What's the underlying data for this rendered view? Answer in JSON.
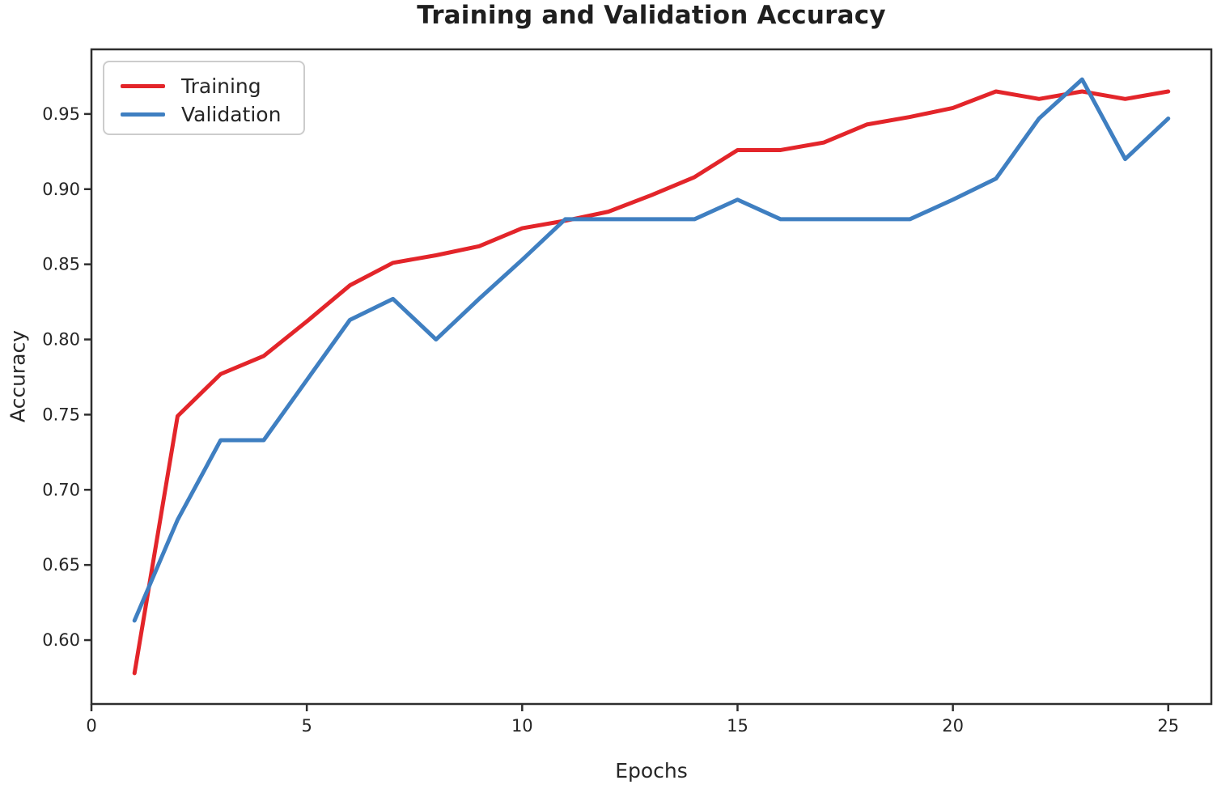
{
  "chart_data": {
    "type": "line",
    "title": "Training and Validation Accuracy",
    "xlabel": "Epochs",
    "ylabel": "Accuracy",
    "x": [
      1,
      2,
      3,
      4,
      5,
      6,
      7,
      8,
      9,
      10,
      11,
      12,
      13,
      14,
      15,
      16,
      17,
      18,
      19,
      20,
      21,
      22,
      23,
      24,
      25
    ],
    "series": [
      {
        "name": "Training",
        "color": "#e3252a",
        "values": [
          0.578,
          0.749,
          0.777,
          0.789,
          0.812,
          0.836,
          0.851,
          0.856,
          0.862,
          0.874,
          0.879,
          0.885,
          0.896,
          0.908,
          0.926,
          0.926,
          0.931,
          0.943,
          0.948,
          0.954,
          0.965,
          0.96,
          0.965,
          0.96,
          0.965
        ]
      },
      {
        "name": "Validation",
        "color": "#3f7fc1",
        "values": [
          0.613,
          0.68,
          0.733,
          0.733,
          0.773,
          0.813,
          0.827,
          0.8,
          0.827,
          0.853,
          0.88,
          0.88,
          0.88,
          0.88,
          0.893,
          0.88,
          0.88,
          0.88,
          0.88,
          0.893,
          0.907,
          0.947,
          0.973,
          0.92,
          0.947
        ]
      }
    ],
    "xlim": [
      0,
      26
    ],
    "ylim": [
      0.5575,
      0.993
    ],
    "xticks": [
      0,
      5,
      10,
      15,
      20,
      25
    ],
    "xtick_labels": [
      "0",
      "5",
      "10",
      "15",
      "20",
      "25"
    ],
    "yticks": [
      0.6,
      0.65,
      0.7,
      0.75,
      0.8,
      0.85,
      0.9,
      0.95
    ],
    "ytick_labels": [
      "0.60",
      "0.65",
      "0.70",
      "0.75",
      "0.80",
      "0.85",
      "0.90",
      "0.95"
    ],
    "grid": false,
    "legend_position": "upper left",
    "axis_color": "#2e2e2e",
    "tick_text_color": "#262626"
  }
}
